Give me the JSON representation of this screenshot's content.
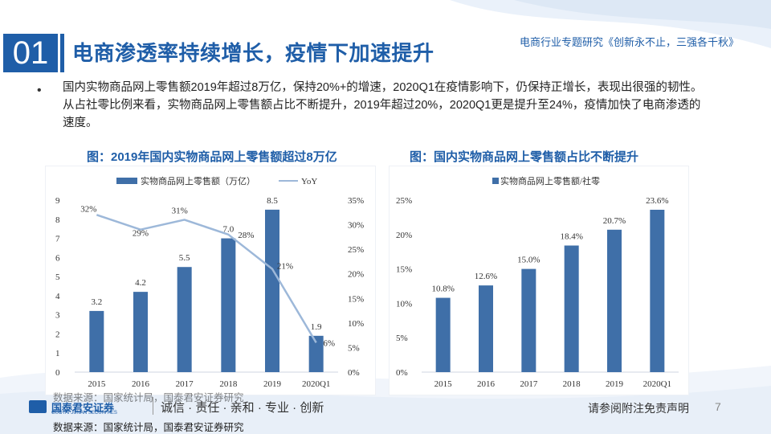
{
  "header": {
    "section_number": "01",
    "title": "电商渗透率持续增长，疫情下加速提升",
    "report_name": "电商行业专题研究《创新永不止，三强各千秋》"
  },
  "bullet": {
    "marker": "•",
    "text": "国内实物商品网上零售额2019年超过8万亿，保持20%+的增速，2020Q1在疫情影响下，仍保持正增长，表现出很强的韧性。从占社零比例来看，实物商品网上零售额占比不断提升，2019年超过20%，2020Q1更是提升至24%，疫情加快了电商渗透的速度。"
  },
  "charts": {
    "left_title": "图：2019年国内实物商品网上零售额超过8万亿",
    "right_title": "图：国内实物商品网上零售额占比不断提升"
  },
  "colors": {
    "brand": "#1f5ea8",
    "bar": "#3f6fa8",
    "line": "#9db8d9"
  },
  "chart_data": [
    {
      "type": "bar",
      "categories": [
        "2015",
        "2016",
        "2017",
        "2018",
        "2019",
        "2020Q1"
      ],
      "series": [
        {
          "name": "实物商品网上零售额（万亿）",
          "type": "bar",
          "axis": "left",
          "values": [
            3.2,
            4.2,
            5.5,
            7.0,
            8.5,
            1.9
          ],
          "labels": [
            "3.2",
            "4.2",
            "5.5",
            "7.0",
            "8.5",
            "1.9"
          ]
        },
        {
          "name": "YoY",
          "type": "line",
          "axis": "right",
          "values": [
            32,
            29,
            31,
            28,
            21,
            6
          ],
          "labels": [
            "32%",
            "29%",
            "31%",
            "28%",
            "21%",
            "6%"
          ]
        }
      ],
      "ylim_left": [
        0,
        9
      ],
      "yticks_left": [
        "0",
        "1",
        "2",
        "3",
        "4",
        "5",
        "6",
        "7",
        "8",
        "9"
      ],
      "ylim_right": [
        0,
        35
      ],
      "yticks_right": [
        "0%",
        "5%",
        "10%",
        "15%",
        "20%",
        "25%",
        "30%",
        "35%"
      ],
      "legend": "top"
    },
    {
      "type": "bar",
      "categories": [
        "2015",
        "2016",
        "2017",
        "2018",
        "2019",
        "2020Q1"
      ],
      "series": [
        {
          "name": "实物商品网上零售额/社零",
          "values": [
            10.8,
            12.6,
            15.0,
            18.4,
            20.7,
            23.6
          ],
          "labels": [
            "10.8%",
            "12.6%",
            "15.0%",
            "18.4%",
            "20.7%",
            "23.6%"
          ]
        }
      ],
      "ylim": [
        0,
        25
      ],
      "yticks": [
        "0%",
        "5%",
        "10%",
        "15%",
        "20%",
        "25%"
      ],
      "legend": "top"
    }
  ],
  "footer": {
    "logo_name": "国泰君安证券",
    "logo_sub": "GUOTAI JUNAN SECURITIES",
    "slogan": "诚信 · 责任 · 亲和 · 专业 · 创新",
    "source": "数据来源：国家统计局，国泰君安证券研究",
    "disclaimer": "请参阅附注免责声明",
    "page": "7"
  }
}
